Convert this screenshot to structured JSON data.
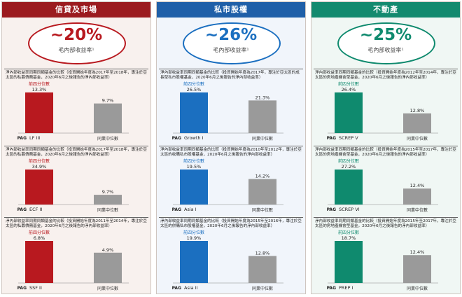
{
  "columns": [
    {
      "id": "credit",
      "title": "信貸及市場",
      "header_color": "#9b1b1f",
      "accent": "#b8191f",
      "hero_pct": "~20%",
      "hero_label": "毛內部收益率¹",
      "panels": [
        {
          "description": "淨內部收益率同期同類基金的比較（投資開始年度為2017年至2018年，專注於亞太區的私募債務基金，2020年6月之後報告的淨內部收益率）",
          "quartile_label": "前四分位數",
          "fund_label": "LF III",
          "peer_label": "同業中位數",
          "fund_value": "13.3%",
          "peer_value": "9.7%"
        },
        {
          "description": "淨內部收益率同期同類基金的比較（投資開始年度為2017年至2018年，專注於亞太區的私募債務基金，2020年6月之後報告的淨內部收益率）",
          "quartile_label": "前四分位數",
          "fund_label": "ECF II",
          "peer_label": "同業中位數",
          "fund_value": "34.9%",
          "peer_value": "9.7%"
        },
        {
          "description": "淨內部收益率同期同類基金的比較（投資開始年度為2011年至2014年，專注於亞太區的私募債務基金，2020年6月之後報告的淨內部收益率）",
          "quartile_label": "前四分位數",
          "fund_label": "SSF II",
          "peer_label": "同業中位數",
          "fund_value": "6.8%",
          "peer_value": "4.9%"
        }
      ]
    },
    {
      "id": "pe",
      "title": "私市股權",
      "header_color": "#1f5fa8",
      "accent": "#1b6fc0",
      "hero_pct": "~26%",
      "hero_label": "毛內部收益率¹",
      "panels": [
        {
          "description": "淨內部收益率同期同類基金的比較（投資開始年度為2017年，專注於亞太區的成長型私市股權基金，2020年6月之後報告的淨內部收益率）",
          "quartile_label": "前四分位數",
          "fund_label": "Growth I",
          "peer_label": "同業中位數",
          "fund_value": "26.5%",
          "peer_value": "21.3%"
        },
        {
          "description": "淨內部收益率同期同類基金的比較（投資開始年度為2010年至2012年，專注於亞太區的收購私市股權基金，2020年6月之後報告的淨內部收益率）",
          "quartile_label": "前四分位數",
          "fund_label": "Asia I",
          "peer_label": "同業中位數",
          "fund_value": "19.5%",
          "peer_value": "14.2%"
        },
        {
          "description": "淨內部收益率同期同類基金的比較（投資開始年度為2015年至2016年，專注於亞太區的併購私市股權基金，2020年6月之後報告的淨內部收益率）",
          "quartile_label": "前四分位數",
          "fund_label": "Asia II",
          "peer_label": "同業中位數",
          "fund_value": "19.9%",
          "peer_value": "12.8%"
        }
      ]
    },
    {
      "id": "re",
      "title": "不動產",
      "header_color": "#138a6f",
      "accent": "#0f8a6e",
      "hero_pct": "~25%",
      "hero_label": "毛內部收益率¹",
      "panels": [
        {
          "description": "淨內部收益率同期同類基金的比較（投資開始年度為2012年至2014年，專注於亞太區的房地產機會型基金，2020年6月之後報告的淨內部收益率）",
          "quartile_label": "前四分位數",
          "fund_label": "SCREP V",
          "peer_label": "同業中位數",
          "fund_value": "26.4%",
          "peer_value": "12.8%"
        },
        {
          "description": "淨內部收益率同期同類基金的比較（投資開始年度為2015年至2017年，專注於亞太區的房地產機會型基金，2020年6月之後報告的淨內部收益率）",
          "quartile_label": "前四分位數",
          "fund_label": "SCREP VI",
          "peer_label": "同業中位數",
          "fund_value": "27.2%",
          "peer_value": "12.4%"
        },
        {
          "description": "淨內部收益率同期同類基金的比較（投資開始年度為2015年至2017年，專注於亞太區的房地產機會型基金，2020年6月之後報告的淨內部收益率）",
          "quartile_label": "前四分位數",
          "fund_label": "PREP I",
          "peer_label": "同業中位數",
          "fund_value": "18.7%",
          "peer_value": "12.4%"
        }
      ]
    }
  ],
  "logo_text": "PAG",
  "chart_data": [
    {
      "type": "bar",
      "categories": [
        "LF III",
        "同業中位數"
      ],
      "values": [
        13.3,
        9.7
      ]
    },
    {
      "type": "bar",
      "categories": [
        "ECF II",
        "同業中位數"
      ],
      "values": [
        34.9,
        9.7
      ]
    },
    {
      "type": "bar",
      "categories": [
        "SSF II",
        "同業中位數"
      ],
      "values": [
        6.8,
        4.9
      ]
    },
    {
      "type": "bar",
      "categories": [
        "Growth I",
        "同業中位數"
      ],
      "values": [
        26.5,
        21.3
      ]
    },
    {
      "type": "bar",
      "categories": [
        "Asia I",
        "同業中位數"
      ],
      "values": [
        19.5,
        14.2
      ]
    },
    {
      "type": "bar",
      "categories": [
        "Asia II",
        "同業中位數"
      ],
      "values": [
        19.9,
        12.8
      ]
    },
    {
      "type": "bar",
      "categories": [
        "SCREP V",
        "同業中位數"
      ],
      "values": [
        26.4,
        12.8
      ]
    },
    {
      "type": "bar",
      "categories": [
        "SCREP VI",
        "同業中位數"
      ],
      "values": [
        27.2,
        12.4
      ]
    },
    {
      "type": "bar",
      "categories": [
        "PREP I",
        "同業中位數"
      ],
      "values": [
        18.7,
        12.4
      ]
    }
  ]
}
